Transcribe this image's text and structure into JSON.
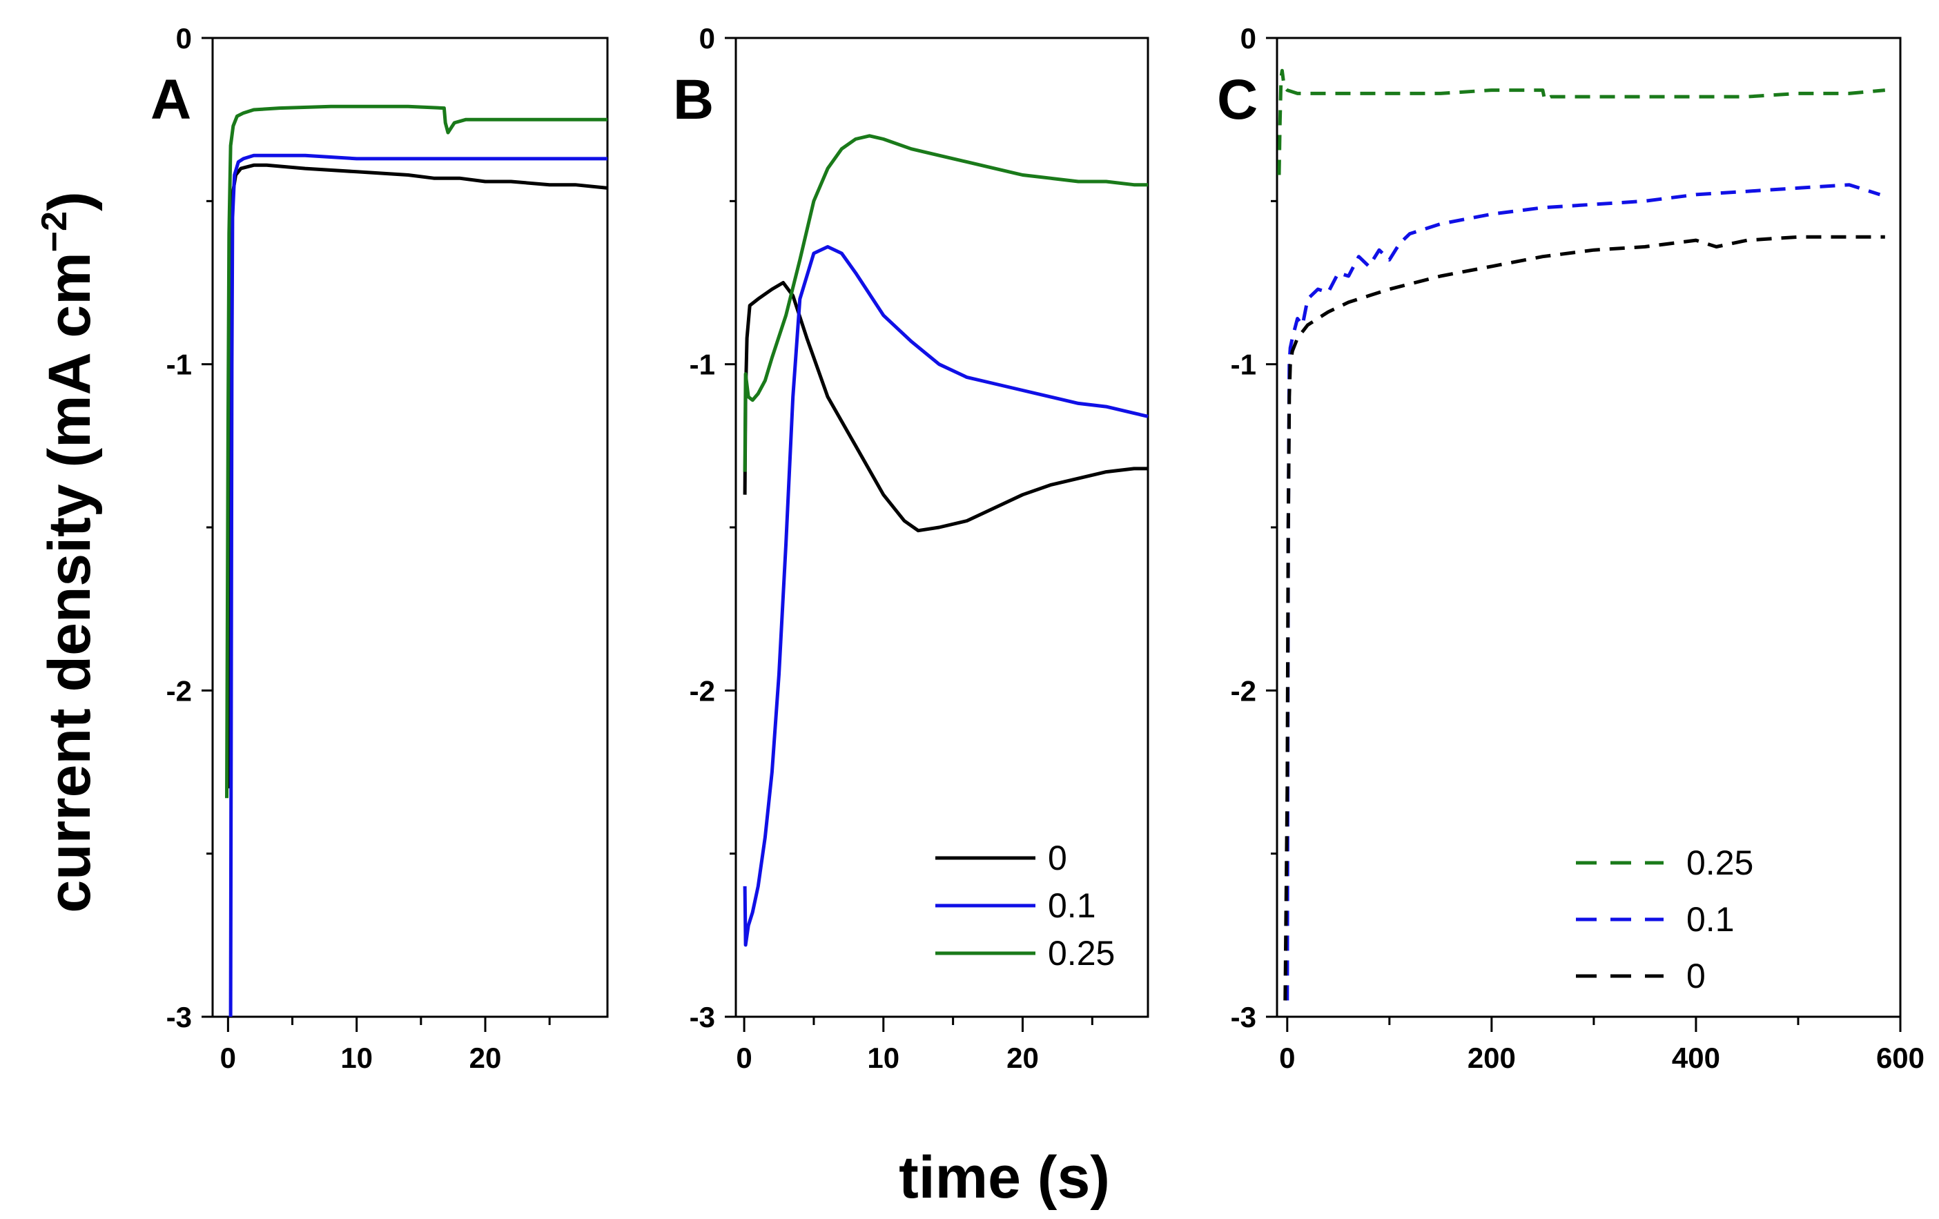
{
  "figure": {
    "ylabel_main": "current density (mA cm",
    "ylabel_sup": "−2",
    "ylabel_close": ")",
    "xlabel": "time (s)"
  },
  "colors": {
    "black": "#000000",
    "blue": "#1010e6",
    "green": "#1a7a1a"
  },
  "chart_data": [
    {
      "panel": "A",
      "type": "line",
      "xlim": [
        -1.2,
        29.5
      ],
      "ylim": [
        -3,
        0
      ],
      "xticks": [
        0,
        10,
        20
      ],
      "xtick_labels": [
        "0",
        "10",
        "20"
      ],
      "xminor": [
        5,
        15,
        25
      ],
      "yticks": [
        0,
        -1,
        -2,
        -3
      ],
      "ytick_labels": [
        "0",
        "-1",
        "-2",
        "-3"
      ],
      "yminor": [
        -0.5,
        -1.5,
        -2.5
      ],
      "series": [
        {
          "name": "0",
          "color": "black",
          "style": "solid",
          "x": [
            0,
            0.08,
            0.2,
            0.35,
            0.6,
            1,
            2,
            3,
            6,
            10,
            14,
            16,
            18,
            20,
            22,
            25,
            27,
            29.5
          ],
          "y": [
            -2.3,
            -1.5,
            -0.8,
            -0.48,
            -0.42,
            -0.4,
            -0.39,
            -0.39,
            -0.4,
            -0.41,
            -0.42,
            -0.43,
            -0.43,
            -0.44,
            -0.44,
            -0.45,
            -0.45,
            -0.46
          ]
        },
        {
          "name": "0.1",
          "color": "blue",
          "style": "solid",
          "x": [
            0.2,
            0.25,
            0.3,
            0.35,
            0.5,
            0.8,
            1.2,
            2,
            3,
            6,
            10,
            15,
            20,
            25,
            29.5
          ],
          "y": [
            -3,
            -2,
            -1,
            -0.55,
            -0.42,
            -0.38,
            -0.37,
            -0.36,
            -0.36,
            -0.36,
            -0.37,
            -0.37,
            -0.37,
            -0.37,
            -0.37
          ]
        },
        {
          "name": "0.25",
          "color": "green",
          "style": "solid",
          "x": [
            -0.1,
            0,
            0.08,
            0.2,
            0.4,
            0.7,
            1.2,
            2,
            4,
            8,
            11,
            14,
            16.8,
            16.9,
            17.1,
            17.6,
            18.5,
            20,
            24,
            29.5
          ],
          "y": [
            -2.33,
            -1.2,
            -0.6,
            -0.33,
            -0.27,
            -0.24,
            -0.23,
            -0.22,
            -0.215,
            -0.21,
            -0.21,
            -0.21,
            -0.215,
            -0.26,
            -0.29,
            -0.26,
            -0.25,
            -0.25,
            -0.25,
            -0.25
          ]
        }
      ]
    },
    {
      "panel": "B",
      "type": "line",
      "xlim": [
        -0.6,
        29
      ],
      "ylim": [
        -3,
        0
      ],
      "xticks": [
        0,
        10,
        20
      ],
      "xtick_labels": [
        "0",
        "10",
        "20"
      ],
      "xminor": [
        5,
        15,
        25
      ],
      "yticks": [
        0,
        -1,
        -2,
        -3
      ],
      "ytick_labels": [
        "0",
        "-1",
        "-2",
        "-3"
      ],
      "yminor": [
        -0.5,
        -1.5,
        -2.5
      ],
      "legend": {
        "position": "bottom-right",
        "entries": [
          "0",
          "0.1",
          "0.25"
        ],
        "colors": [
          "black",
          "blue",
          "green"
        ],
        "style": "solid"
      },
      "series": [
        {
          "name": "0",
          "color": "black",
          "style": "solid",
          "x": [
            0.05,
            0.1,
            0.2,
            0.4,
            1,
            2,
            2.8,
            3.5,
            4.5,
            6,
            8,
            10,
            11.5,
            12.5,
            14,
            16,
            18,
            20,
            22,
            24,
            26,
            28,
            29
          ],
          "y": [
            -1.4,
            -1.1,
            -0.92,
            -0.82,
            -0.8,
            -0.77,
            -0.75,
            -0.79,
            -0.92,
            -1.1,
            -1.25,
            -1.4,
            -1.48,
            -1.51,
            -1.5,
            -1.48,
            -1.44,
            -1.4,
            -1.37,
            -1.35,
            -1.33,
            -1.32,
            -1.32
          ]
        },
        {
          "name": "0.1",
          "color": "blue",
          "style": "solid",
          "x": [
            0.05,
            0.1,
            0.3,
            0.6,
            1,
            1.5,
            2,
            2.5,
            3,
            3.5,
            4,
            5,
            6,
            7,
            8,
            10,
            12,
            14,
            16,
            18,
            20,
            22,
            24,
            26,
            28,
            29
          ],
          "y": [
            -2.6,
            -2.78,
            -2.72,
            -2.68,
            -2.6,
            -2.45,
            -2.25,
            -1.95,
            -1.55,
            -1.1,
            -0.8,
            -0.66,
            -0.64,
            -0.66,
            -0.72,
            -0.85,
            -0.93,
            -1.0,
            -1.04,
            -1.06,
            -1.08,
            -1.1,
            -1.12,
            -1.13,
            -1.15,
            -1.16
          ]
        },
        {
          "name": "0.25",
          "color": "green",
          "style": "solid",
          "x": [
            0.05,
            0.1,
            0.3,
            0.6,
            1,
            1.5,
            2,
            3,
            4,
            5,
            6,
            7,
            8,
            9,
            10,
            12,
            14,
            16,
            18,
            20,
            22,
            24,
            26,
            28,
            29
          ],
          "y": [
            -1.33,
            -1.03,
            -1.1,
            -1.11,
            -1.09,
            -1.05,
            -0.98,
            -0.85,
            -0.68,
            -0.5,
            -0.4,
            -0.34,
            -0.31,
            -0.3,
            -0.31,
            -0.34,
            -0.36,
            -0.38,
            -0.4,
            -0.42,
            -0.43,
            -0.44,
            -0.44,
            -0.45,
            -0.45
          ]
        }
      ]
    },
    {
      "panel": "C",
      "type": "line",
      "xlim": [
        -10,
        600
      ],
      "ylim": [
        -3,
        0
      ],
      "xticks": [
        0,
        200,
        400,
        600
      ],
      "xtick_labels": [
        "0",
        "200",
        "400",
        "600"
      ],
      "xminor": [
        100,
        300,
        500
      ],
      "yticks": [
        0,
        -1,
        -2,
        -3
      ],
      "ytick_labels": [
        "0",
        "-1",
        "-2",
        "-3"
      ],
      "yminor": [
        -0.5,
        -1.5,
        -2.5
      ],
      "legend": {
        "position": "bottom-right",
        "entries": [
          "0.25",
          "0.1",
          "0"
        ],
        "colors": [
          "green",
          "blue",
          "black"
        ],
        "style": "dashed"
      },
      "series": [
        {
          "name": "0.25",
          "color": "green",
          "style": "dashed",
          "x": [
            -8,
            -7,
            -6,
            -5,
            -3,
            0,
            10,
            50,
            100,
            150,
            200,
            250,
            252,
            258,
            300,
            350,
            400,
            450,
            500,
            550,
            585
          ],
          "y": [
            -0.42,
            -0.25,
            -0.12,
            -0.1,
            -0.15,
            -0.16,
            -0.17,
            -0.17,
            -0.17,
            -0.17,
            -0.16,
            -0.16,
            -0.19,
            -0.18,
            -0.18,
            -0.18,
            -0.18,
            -0.18,
            -0.17,
            -0.17,
            -0.16
          ]
        },
        {
          "name": "0.1",
          "color": "blue",
          "style": "dashed",
          "x": [
            0,
            1,
            2,
            3,
            5,
            10,
            15,
            20,
            30,
            40,
            50,
            60,
            70,
            80,
            90,
            100,
            110,
            120,
            150,
            200,
            250,
            300,
            350,
            400,
            450,
            500,
            550,
            580
          ],
          "y": [
            -2.95,
            -1.5,
            -1.0,
            -0.95,
            -0.92,
            -0.86,
            -0.88,
            -0.8,
            -0.77,
            -0.78,
            -0.72,
            -0.73,
            -0.67,
            -0.7,
            -0.65,
            -0.68,
            -0.63,
            -0.6,
            -0.57,
            -0.54,
            -0.52,
            -0.51,
            -0.5,
            -0.48,
            -0.47,
            -0.46,
            -0.45,
            -0.48
          ]
        },
        {
          "name": "0",
          "color": "black",
          "style": "dashed",
          "x": [
            -2,
            0,
            1,
            2,
            3,
            5,
            10,
            20,
            40,
            60,
            80,
            100,
            150,
            200,
            250,
            300,
            350,
            400,
            420,
            450,
            500,
            550,
            585
          ],
          "y": [
            -2.95,
            -2.3,
            -1.5,
            -1.1,
            -1.0,
            -0.96,
            -0.92,
            -0.88,
            -0.84,
            -0.81,
            -0.79,
            -0.77,
            -0.73,
            -0.7,
            -0.67,
            -0.65,
            -0.64,
            -0.62,
            -0.64,
            -0.62,
            -0.61,
            -0.61,
            -0.61
          ]
        }
      ]
    }
  ]
}
